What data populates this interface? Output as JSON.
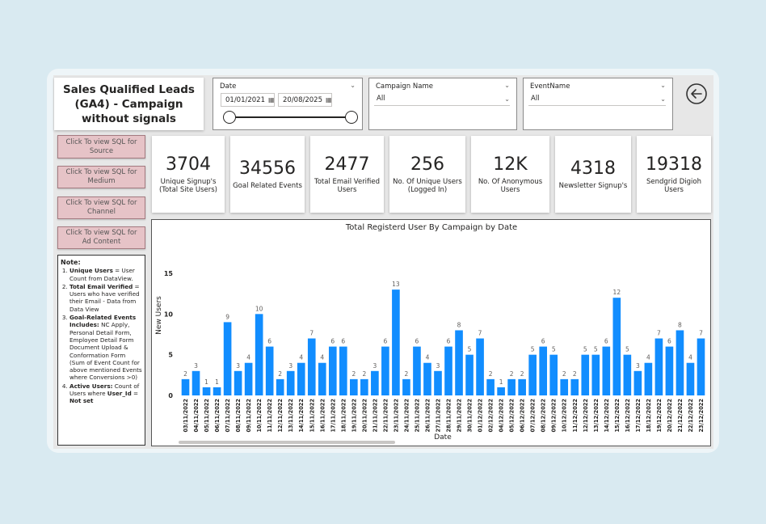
{
  "report": {
    "title": "Sales Qualified Leads (GA4) - Campaign without signals"
  },
  "slicers": {
    "date": {
      "label": "Date",
      "start": "01/01/2021",
      "end": "20/08/2025",
      "range_fraction": [
        0,
        1
      ]
    },
    "campaign": {
      "label": "Campaign Name",
      "value": "All"
    },
    "event": {
      "label": "EventName",
      "value": "All"
    }
  },
  "sql_buttons": [
    "Click To view SQL for Source",
    "Click To view SQL for Medium",
    "Click To view SQL for Channel",
    "Click To view SQL for Ad Content"
  ],
  "cards": [
    {
      "value": "3704",
      "label": "Unique Signup's (Total Site Users)"
    },
    {
      "value": "34556",
      "label": "Goal Related Events"
    },
    {
      "value": "2477",
      "label": "Total Email Verified Users"
    },
    {
      "value": "256",
      "label": "No. Of Unique Users (Logged In)"
    },
    {
      "value": "12K",
      "label": "No. Of Anonymous Users"
    },
    {
      "value": "4318",
      "label": "Newsletter Signup's"
    },
    {
      "value": "19318",
      "label": "Sendgrid Digioh Users"
    }
  ],
  "note": {
    "heading": "Note:",
    "items": [
      {
        "bold": "Unique Users",
        "text": " = User Count from DataView."
      },
      {
        "bold": "Total Email Verified",
        "text": " = Users who have verified their Email - Data from Data View"
      },
      {
        "bold": "Goal-Related Events Includes:",
        "text": " NC Apply, Personal Detail Form, Employee Detail Form Document Upload & Conformation Form (Sum of Event Count for above mentioned Events where Conversions >0)"
      },
      {
        "bold": "Active Users:",
        "text": " Count of Users where ",
        "bold2": "User_Id",
        "text2": " = ",
        "bold3": "Not set"
      }
    ]
  },
  "chart_data": {
    "type": "bar",
    "title": "Total Registerd User By Campaign by Date",
    "xlabel": "Date",
    "ylabel": "New Users",
    "yticks": [
      0,
      5,
      10,
      15
    ],
    "ylim": [
      0,
      15
    ],
    "bar_color": "#118dff",
    "categories": [
      "03/11/2022",
      "04/11/2022",
      "05/11/2022",
      "06/11/2022",
      "07/11/2022",
      "08/11/2022",
      "09/11/2022",
      "10/11/2022",
      "11/11/2022",
      "12/11/2022",
      "13/11/2022",
      "14/11/2022",
      "15/11/2022",
      "16/11/2022",
      "17/11/2022",
      "18/11/2022",
      "19/11/2022",
      "20/11/2022",
      "21/11/2022",
      "22/11/2022",
      "23/11/2022",
      "24/11/2022",
      "25/11/2022",
      "26/11/2022",
      "27/11/2022",
      "28/11/2022",
      "29/11/2022",
      "30/11/2022",
      "01/12/2022",
      "02/12/2022",
      "04/12/2022",
      "05/12/2022",
      "06/12/2022",
      "07/12/2022",
      "08/12/2022",
      "09/12/2022",
      "10/12/2022",
      "11/12/2022",
      "12/12/2022",
      "13/12/2022",
      "14/12/2022",
      "15/12/2022",
      "16/12/2022",
      "17/12/2022",
      "18/12/2022",
      "19/12/2022",
      "20/12/2022",
      "21/12/2022",
      "22/12/2022",
      "23/12/2022"
    ],
    "values": [
      2,
      3,
      1,
      1,
      9,
      3,
      4,
      10,
      6,
      2,
      3,
      4,
      7,
      4,
      6,
      6,
      2,
      2,
      3,
      6,
      13,
      2,
      6,
      4,
      3,
      6,
      8,
      5,
      7,
      2,
      1,
      2,
      2,
      5,
      6,
      5,
      2,
      2,
      5,
      5,
      6,
      12,
      5,
      3,
      4,
      7,
      6,
      8,
      4,
      7
    ]
  }
}
